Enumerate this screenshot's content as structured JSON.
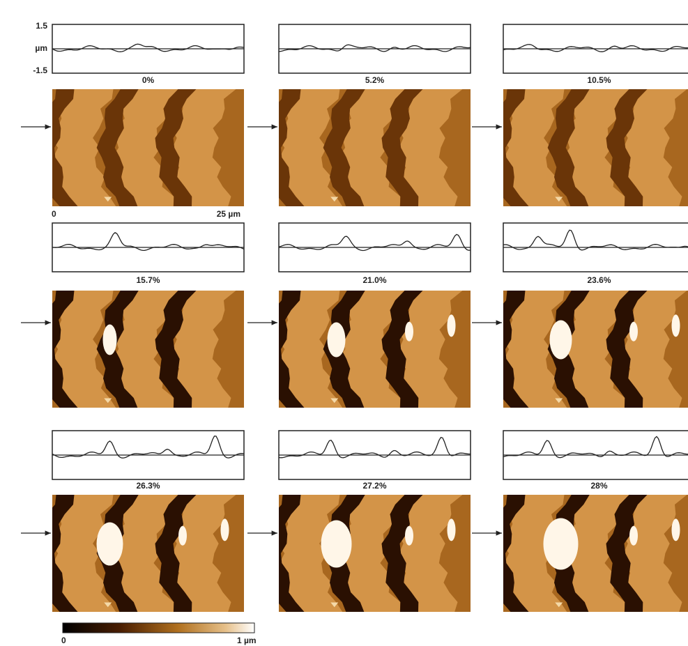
{
  "axis": {
    "top": "1.5",
    "unit": "µm",
    "bottom": "-1.5"
  },
  "panels": [
    {
      "label": "0%"
    },
    {
      "label": "5.2%"
    },
    {
      "label": "10.5%"
    },
    {
      "label": "15.7%"
    },
    {
      "label": "21.0%"
    },
    {
      "label": "23.6%"
    },
    {
      "label": "26.3%"
    },
    {
      "label": "27.2%"
    },
    {
      "label": "28%"
    }
  ],
  "scale_bar": {
    "start": "0",
    "end": "25 µm"
  },
  "colorbar": {
    "min": "0",
    "max": "1 µm"
  }
}
